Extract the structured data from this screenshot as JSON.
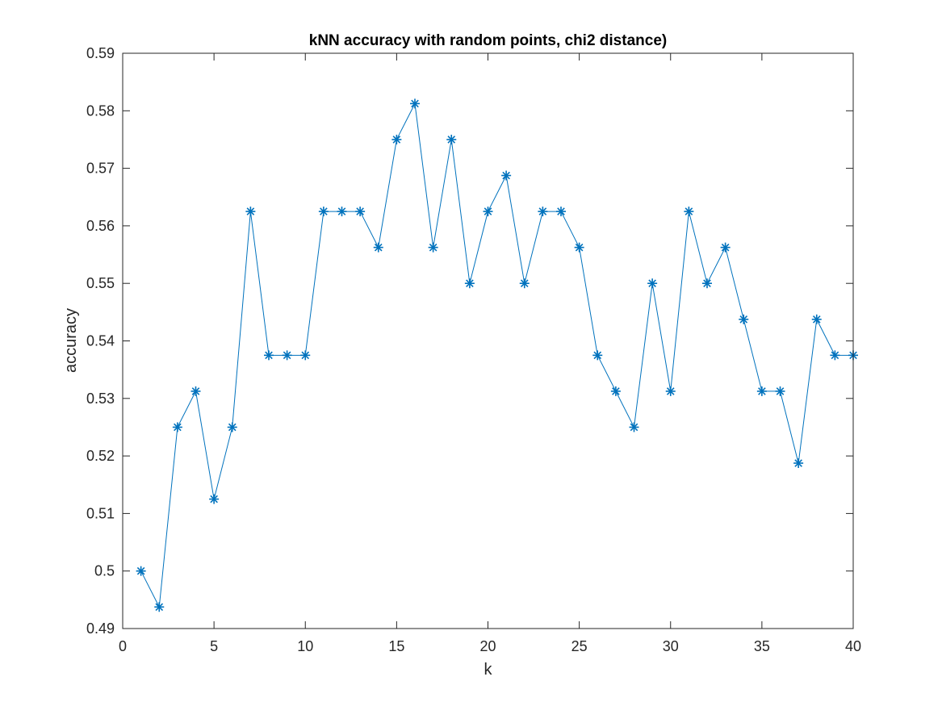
{
  "chart_data": {
    "type": "line",
    "title": "kNN accuracy with random points, chi2 distance)",
    "xlabel": "k",
    "ylabel": "accuracy",
    "xlim": [
      0,
      40
    ],
    "ylim": [
      0.49,
      0.59
    ],
    "xticks": [
      0,
      5,
      10,
      15,
      20,
      25,
      30,
      35,
      40
    ],
    "yticks": [
      0.49,
      0.5,
      0.51,
      0.52,
      0.53,
      0.54,
      0.55,
      0.56,
      0.57,
      0.58,
      0.59
    ],
    "ytick_labels": [
      "0.49",
      "0.5",
      "0.51",
      "0.52",
      "0.53",
      "0.54",
      "0.55",
      "0.56",
      "0.57",
      "0.58",
      "0.59"
    ],
    "grid": false,
    "marker": "asterisk",
    "series": [
      {
        "color": "#0072BD",
        "x": [
          1,
          2,
          3,
          4,
          5,
          6,
          7,
          8,
          9,
          10,
          11,
          12,
          13,
          14,
          15,
          16,
          17,
          18,
          19,
          20,
          21,
          22,
          23,
          24,
          25,
          26,
          27,
          28,
          29,
          30,
          31,
          32,
          33,
          34,
          35,
          36,
          37,
          38,
          39,
          40
        ],
        "y": [
          0.5,
          0.49375,
          0.525,
          0.53125,
          0.5125,
          0.525,
          0.5625,
          0.5375,
          0.5375,
          0.5375,
          0.5625,
          0.5625,
          0.5625,
          0.55625,
          0.575,
          0.58125,
          0.55625,
          0.575,
          0.55,
          0.5625,
          0.56875,
          0.55,
          0.5625,
          0.5625,
          0.55625,
          0.5375,
          0.53125,
          0.525,
          0.55,
          0.53125,
          0.5625,
          0.55,
          0.55625,
          0.54375,
          0.53125,
          0.53125,
          0.51875,
          0.54375,
          0.5375,
          0.5375
        ]
      }
    ]
  }
}
